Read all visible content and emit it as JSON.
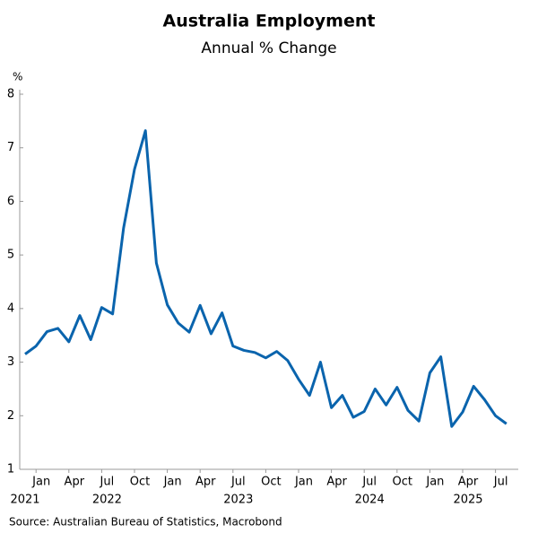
{
  "chart_data": {
    "type": "line",
    "title": "Australia Employment",
    "subtitle": "Annual % Change",
    "y_unit": "%",
    "source": "Source: Australian Bureau of Statistics, Macrobond",
    "x": [
      "2021-12",
      "2022-01",
      "2022-02",
      "2022-03",
      "2022-04",
      "2022-05",
      "2022-06",
      "2022-07",
      "2022-08",
      "2022-09",
      "2022-10",
      "2022-11",
      "2022-12",
      "2023-01",
      "2023-02",
      "2023-03",
      "2023-04",
      "2023-05",
      "2023-06",
      "2023-07",
      "2023-08",
      "2023-09",
      "2023-10",
      "2023-11",
      "2023-12",
      "2024-01",
      "2024-02",
      "2024-03",
      "2024-04",
      "2024-05",
      "2024-06",
      "2024-07",
      "2024-08",
      "2024-09",
      "2024-10",
      "2024-11",
      "2024-12",
      "2025-01",
      "2025-02",
      "2025-03",
      "2025-04",
      "2025-05",
      "2025-06",
      "2025-07",
      "2025-08"
    ],
    "series": [
      {
        "name": "Employment",
        "color": "#0a64ad",
        "values": [
          3.15,
          3.3,
          3.57,
          3.63,
          3.38,
          3.87,
          3.42,
          4.02,
          3.9,
          5.5,
          6.6,
          7.32,
          4.85,
          4.07,
          3.73,
          3.56,
          4.06,
          3.53,
          3.92,
          3.3,
          3.22,
          3.18,
          3.08,
          3.2,
          3.03,
          2.68,
          2.38,
          3.0,
          2.15,
          2.38,
          1.97,
          2.08,
          2.5,
          2.2,
          2.53,
          2.1,
          1.9,
          2.8,
          3.1,
          1.8,
          2.07,
          2.55,
          2.3,
          2.0,
          1.85
        ]
      }
    ],
    "xticks": [
      {
        "value": "2022-01",
        "label": "Jan"
      },
      {
        "value": "2022-04",
        "label": "Apr"
      },
      {
        "value": "2022-07",
        "label": "Jul"
      },
      {
        "value": "2022-10",
        "label": "Oct"
      },
      {
        "value": "2023-01",
        "label": "Jan"
      },
      {
        "value": "2023-04",
        "label": "Apr"
      },
      {
        "value": "2023-07",
        "label": "Jul"
      },
      {
        "value": "2023-10",
        "label": "Oct"
      },
      {
        "value": "2024-01",
        "label": "Jan"
      },
      {
        "value": "2024-04",
        "label": "Apr"
      },
      {
        "value": "2024-07",
        "label": "Jul"
      },
      {
        "value": "2024-10",
        "label": "Oct"
      },
      {
        "value": "2025-01",
        "label": "Jan"
      },
      {
        "value": "2025-04",
        "label": "Apr"
      },
      {
        "value": "2025-07",
        "label": "Jul"
      }
    ],
    "year_labels": [
      {
        "value": "2021-12",
        "label": "2021"
      },
      {
        "value": "2022-07",
        "label": "2022"
      },
      {
        "value": "2023-07",
        "label": "2023"
      },
      {
        "value": "2024-07",
        "label": "2024"
      },
      {
        "value": "2025-04",
        "label": "2025"
      }
    ],
    "ylim": [
      1,
      8
    ],
    "yticks": [
      1,
      2,
      3,
      4,
      5,
      6,
      7,
      8
    ]
  }
}
